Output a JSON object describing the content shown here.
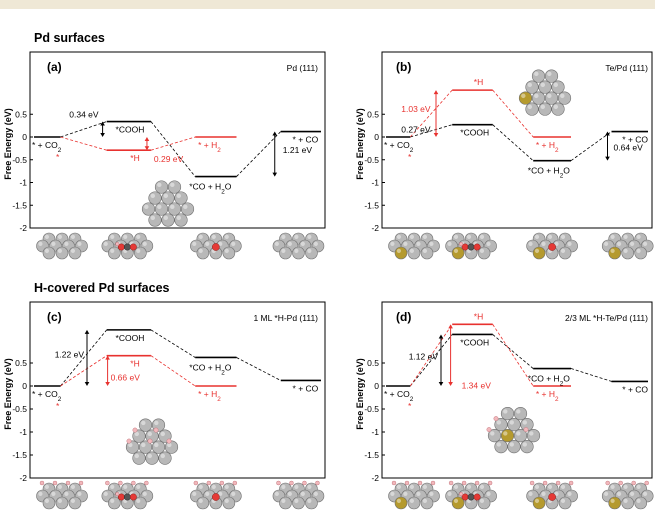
{
  "colors": {
    "band": "#efe8d6",
    "co2_path": "#000000",
    "h_path": "#e8322f",
    "pd_atom": "#b8b8b8",
    "te_atom": "#b59a2e",
    "c_atom": "#555555",
    "o_atom": "#e53935",
    "h_atom": "#f2b8bc"
  },
  "sections": {
    "top": "Pd surfaces",
    "bottom": "H-covered Pd surfaces"
  },
  "ylabel": "Free Energy (eV)",
  "ticks": [
    "0.5",
    "0",
    "-0.5",
    "-1",
    "-1.5",
    "-2"
  ],
  "chart_data": [
    {
      "type": "line",
      "panel": "(a)",
      "surface": "Pd (111)",
      "ylabel": "Free Energy (eV)",
      "ylim": [
        -2,
        0.6
      ],
      "states": [
        "* + CO2",
        "*COOH",
        "*CO + H2O",
        "* + CO"
      ],
      "series": [
        {
          "color": "black",
          "values": [
            0,
            0.34,
            -0.87,
            0.12
          ]
        },
        {
          "color": "red",
          "values": [
            0,
            -0.29,
            0,
            null
          ]
        }
      ],
      "labels": {
        "start": "* + CO",
        "start_sub": "2",
        "start_star": "*",
        "s2": "*COOH",
        "s3": "*CO + H",
        "s3_sub": "2",
        "s3_tail": "O",
        "s4": "* + CO",
        "h1": "*H",
        "h2": "* + H",
        "h2_sub": "2"
      },
      "annotations": [
        "0.34 eV",
        "0.29 eV",
        "1.21 eV"
      ]
    },
    {
      "type": "line",
      "panel": "(b)",
      "surface": "Te/Pd (111)",
      "ylabel": "Free Energy (eV)",
      "ylim": [
        -2,
        0.6
      ],
      "states": [
        "* + CO2",
        "*COOH",
        "*CO + H2O",
        "* + CO"
      ],
      "series": [
        {
          "color": "black",
          "values": [
            0,
            0.27,
            -0.52,
            0.12
          ]
        },
        {
          "color": "red",
          "values": [
            0,
            1.03,
            0,
            null
          ]
        }
      ],
      "labels": {
        "start": "* + CO",
        "start_sub": "2",
        "start_star": "*",
        "s2": "*COOH",
        "s3": "*CO + H",
        "s3_sub": "2",
        "s3_tail": "O",
        "s4": "* + CO",
        "h1": "*H",
        "h2": "* + H",
        "h2_sub": "2"
      },
      "annotations": [
        "1.03 eV",
        "0.27 eV",
        "0.64 eV"
      ]
    },
    {
      "type": "line",
      "panel": "(c)",
      "surface": "1 ML *H-Pd (111)",
      "ylabel": "Free Energy (eV)",
      "ylim": [
        -2,
        1.4
      ],
      "states": [
        "* + CO2",
        "*COOH",
        "*CO + H2O",
        "* + CO"
      ],
      "series": [
        {
          "color": "black",
          "values": [
            0,
            1.22,
            0.62,
            0.12
          ]
        },
        {
          "color": "red",
          "values": [
            0,
            0.66,
            0,
            null
          ]
        }
      ],
      "labels": {
        "start": "* + CO",
        "start_sub": "2",
        "start_star": "*",
        "s2": "*COOH",
        "s3": "*CO + H",
        "s3_sub": "2",
        "s3_tail": "O",
        "s4": "* + CO",
        "h1": "*H",
        "h2": "* + H",
        "h2_sub": "2"
      },
      "annotations": [
        "1.22 eV",
        "0.66 eV"
      ]
    },
    {
      "type": "line",
      "panel": "(d)",
      "surface": "2/3 ML *H-Te/Pd (111)",
      "ylabel": "Free Energy (eV)",
      "ylim": [
        -2,
        1.4
      ],
      "states": [
        "* + CO2",
        "*COOH",
        "*CO + H2O",
        "* + CO"
      ],
      "series": [
        {
          "color": "black",
          "values": [
            0,
            1.12,
            0.38,
            0.1
          ]
        },
        {
          "color": "red",
          "values": [
            0,
            1.34,
            0,
            null
          ]
        }
      ],
      "labels": {
        "start": "* + CO",
        "start_sub": "2",
        "start_star": "*",
        "s2": "*COOH",
        "s3": "*CO + H",
        "s3_sub": "2",
        "s3_tail": "O",
        "s4": "* + CO",
        "h1": "*H",
        "h2": "* + H",
        "h2_sub": "2"
      },
      "annotations": [
        "1.12 eV",
        "1.34 eV"
      ]
    }
  ]
}
